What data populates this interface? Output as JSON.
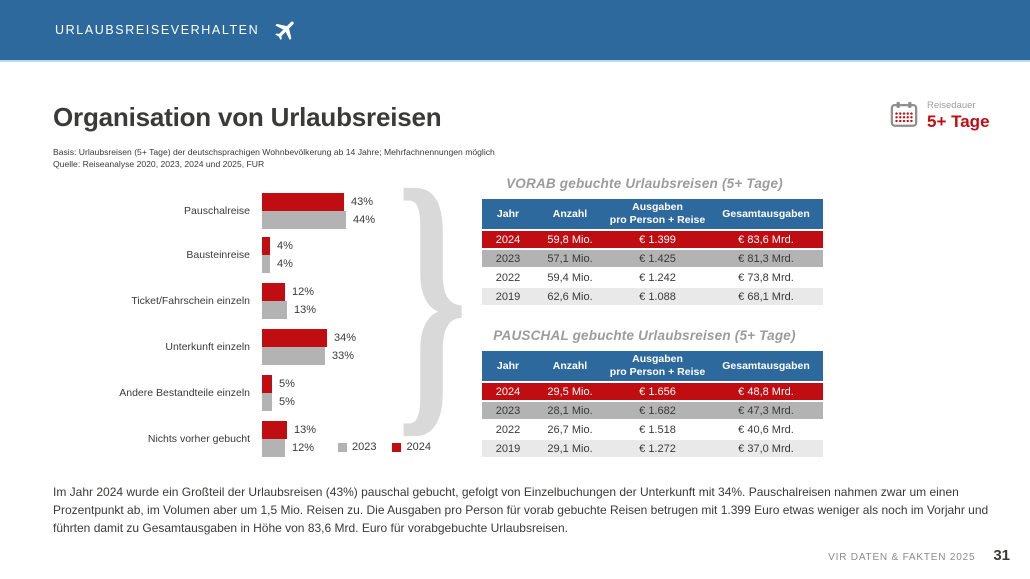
{
  "theme": {
    "blue": "#2e699e",
    "red": "#c00d12",
    "gray": "#b3b3b3",
    "light_gray": "#e9e9e9",
    "divider_blue": "#bcd8ec",
    "title_gray": "#9c9c9c"
  },
  "topbar": {
    "title": "URLAUBSREISEVERHALTEN"
  },
  "duration_badge": {
    "label": "Reisedauer",
    "value": "5+ Tage"
  },
  "page": {
    "title": "Organisation von Urlaubsreisen",
    "basis": "Basis: Urlaubsreisen (5+ Tage) der deutschsprachigen Wohnbevölkerung ab 14 Jahre; Mehrfachnennungen möglich",
    "quelle": "Quelle: Reiseanalyse 2020, 2023, 2024 und 2025, FUR"
  },
  "chart_data": [
    {
      "type": "bar",
      "orientation": "horizontal",
      "title": "",
      "categories": [
        "Pauschalreise",
        "Bausteinreise",
        "Ticket/Fahrschein einzeln",
        "Unterkunft einzeln",
        "Andere Bestandteile einzeln",
        "Nichts vorher gebucht"
      ],
      "series": [
        {
          "name": "2024",
          "color": "#c00d12",
          "values": [
            43,
            4,
            12,
            34,
            5,
            13
          ]
        },
        {
          "name": "2023",
          "color": "#b3b3b3",
          "values": [
            44,
            4,
            13,
            33,
            5,
            12
          ]
        }
      ],
      "unit": "%",
      "xlim": [
        0,
        50
      ],
      "grid": false,
      "legend_position": "bottom-right"
    },
    {
      "type": "table",
      "title": "VORAB gebuchte Urlaubsreisen (5+ Tage)",
      "columns": [
        {
          "label": "Jahr"
        },
        {
          "label": "Anzahl"
        },
        {
          "label": "Ausgaben",
          "sub": "pro Person + Reise"
        },
        {
          "label": "Gesamtausgaben"
        }
      ],
      "rows": [
        [
          "2024",
          "59,8 Mio.",
          "€ 1.399",
          "€ 83,6 Mrd."
        ],
        [
          "2023",
          "57,1 Mio.",
          "€ 1.425",
          "€ 81,3 Mrd."
        ],
        [
          "2022",
          "59,4 Mio.",
          "€ 1.242",
          "€ 73,8 Mrd."
        ],
        [
          "2019",
          "62,6 Mio.",
          "€ 1.088",
          "€ 68,1 Mrd."
        ]
      ],
      "row_styles": [
        "red",
        "gray",
        "white",
        "lightgray"
      ]
    },
    {
      "type": "table",
      "title": "PAUSCHAL gebuchte Urlaubsreisen (5+ Tage)",
      "columns": [
        {
          "label": "Jahr"
        },
        {
          "label": "Anzahl"
        },
        {
          "label": "Ausgaben",
          "sub": "pro Person + Reise"
        },
        {
          "label": "Gesamtausgaben"
        }
      ],
      "rows": [
        [
          "2024",
          "29,5 Mio.",
          "€ 1.656",
          "€ 48,8 Mrd."
        ],
        [
          "2023",
          "28,1 Mio.",
          "€ 1.682",
          "€ 47,3 Mrd."
        ],
        [
          "2022",
          "26,7 Mio.",
          "€ 1.518",
          "€ 40,6 Mrd."
        ],
        [
          "2019",
          "29,1 Mio.",
          "€ 1.272",
          "€ 37,0 Mrd."
        ]
      ],
      "row_styles": [
        "red",
        "gray",
        "white",
        "lightgray"
      ]
    }
  ],
  "summary": "Im Jahr 2024 wurde ein Großteil der Urlaubsreisen (43%) pauschal gebucht, gefolgt von Einzelbuchungen der Unterkunft mit 34%. Pauschalreisen nahmen zwar um einen Prozentpunkt ab, im Volumen aber um 1,5 Mio. Reisen zu. Die Ausgaben pro Person für vorab gebuchte Reisen betrugen mit 1.399 Euro etwas weniger als noch im Vorjahr und führten damit zu Gesamtausgaben in Höhe von 83,6 Mrd. Euro für vorabgebuchte Urlaubsreisen.",
  "footer": {
    "label": "VIR DATEN & FAKTEN 2025",
    "page": "31"
  }
}
